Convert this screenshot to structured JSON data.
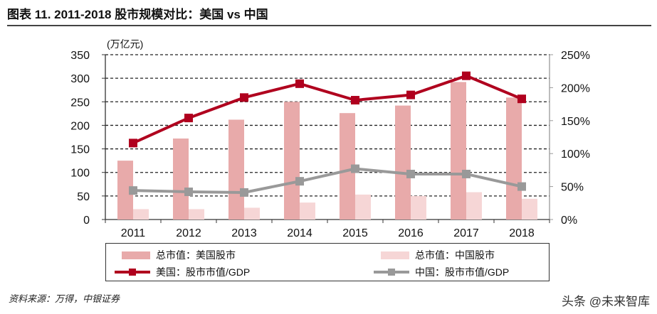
{
  "title": "图表 11. 2011-2018 股市规模对比：美国 vs 中国",
  "source": "资料来源：万得，中银证券",
  "watermark": "头条 @未来智库",
  "chart_data": {
    "type": "bar+line",
    "title": "图表 11. 2011-2018 股市规模对比：美国 vs 中国",
    "ylabel": "(万亿元)",
    "ylim": [
      0,
      350
    ],
    "y2lim": [
      0,
      2.5
    ],
    "yticks": [
      "0",
      "50",
      "100",
      "150",
      "200",
      "250",
      "300",
      "350"
    ],
    "y2ticks": [
      "0%",
      "50%",
      "100%",
      "150%",
      "200%",
      "250%"
    ],
    "grid": true,
    "legend": "bottom",
    "categories": [
      "2011",
      "2012",
      "2013",
      "2014",
      "2015",
      "2016",
      "2017",
      "2018"
    ],
    "series": [
      {
        "name": "总市值：美国股市",
        "type": "bar",
        "axis": "left",
        "color": "#e8aaaa",
        "values": [
          125,
          172,
          212,
          250,
          226,
          242,
          292,
          259
        ]
      },
      {
        "name": "总市值：中国股市",
        "type": "bar",
        "axis": "left",
        "color": "#f6d6d6",
        "values": [
          22,
          22,
          25,
          36,
          53,
          50,
          58,
          44
        ]
      },
      {
        "name": "美国：股市市值/GDP",
        "type": "line",
        "axis": "right",
        "color": "#b0001e",
        "values": [
          1.16,
          1.54,
          1.85,
          2.06,
          1.81,
          1.89,
          2.18,
          1.83
        ]
      },
      {
        "name": "中国：股市市值/GDP",
        "type": "line",
        "axis": "right",
        "color": "#999999",
        "values": [
          0.44,
          0.42,
          0.41,
          0.58,
          0.77,
          0.69,
          0.69,
          0.5
        ]
      }
    ]
  }
}
